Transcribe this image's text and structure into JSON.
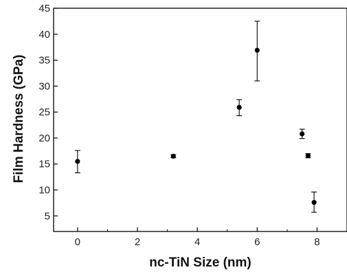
{
  "chart_data": {
    "type": "scatter",
    "title": "",
    "xlabel": "nc-TiN Size (nm)",
    "ylabel": "Film Hardness (GPa)",
    "xlim": [
      -0.8,
      9.0
    ],
    "ylim": [
      2,
      45
    ],
    "xticks": [
      0,
      2,
      4,
      6,
      8
    ],
    "yticks": [
      5,
      10,
      15,
      20,
      25,
      30,
      35,
      40,
      45
    ],
    "grid": false,
    "legend": "none",
    "marker_color": "#000000",
    "series": [
      {
        "points": [
          {
            "x": 0.0,
            "y": 15.5,
            "err_low": 13.3,
            "err_high": 17.6
          },
          {
            "x": 3.2,
            "y": 16.5,
            "err_low": 16.2,
            "err_high": 16.8
          },
          {
            "x": 5.4,
            "y": 25.9,
            "err_low": 24.3,
            "err_high": 27.4
          },
          {
            "x": 6.0,
            "y": 36.9,
            "err_low": 31.0,
            "err_high": 42.5
          },
          {
            "x": 7.5,
            "y": 20.8,
            "err_low": 19.9,
            "err_high": 21.7
          },
          {
            "x": 7.7,
            "y": 16.6,
            "err_low": 16.2,
            "err_high": 17.0
          },
          {
            "x": 7.9,
            "y": 7.6,
            "err_low": 5.7,
            "err_high": 9.6
          }
        ]
      }
    ]
  }
}
